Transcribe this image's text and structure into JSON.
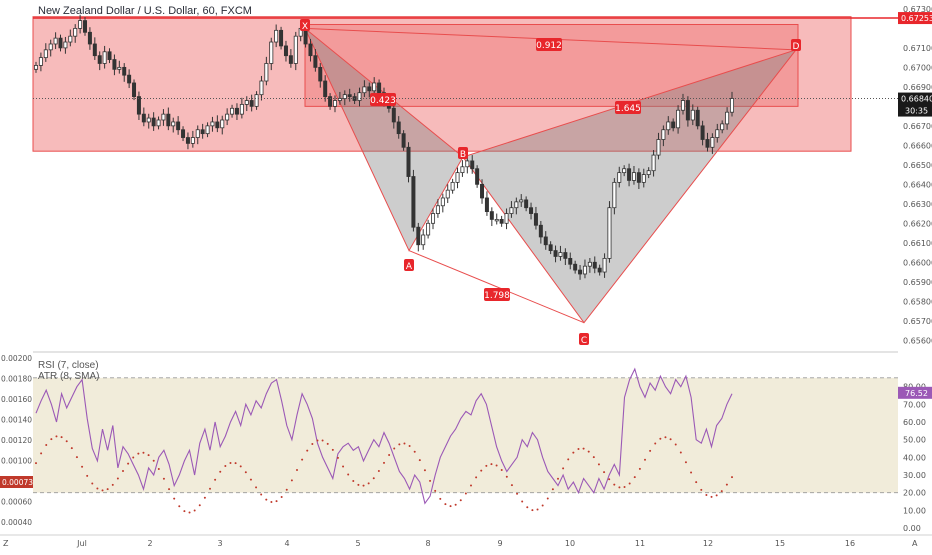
{
  "header": {
    "title": "New Zealand Dollar / U.S. Dollar, 60, FXCM"
  },
  "indicators": {
    "rsi_label": "RSI (7, close)",
    "atr_label": "ATR (8, SMA)"
  },
  "price_labels": {
    "top_line": "0.67253",
    "current": "0.66840",
    "countdown": "30:35"
  },
  "lower_labels": {
    "rsi_value": "76.52",
    "atr_value": "0.00073"
  },
  "pattern_labels": {
    "X": "X",
    "A": "A",
    "B": "B",
    "C": "C",
    "D": "D",
    "xd": "0.912",
    "xb": "0.423",
    "bd": "1.645",
    "ac": "1.798"
  },
  "corner_labels": {
    "left": "Z",
    "right": "A"
  },
  "chart_data": {
    "type": "candlestick",
    "title": "New Zealand Dollar / U.S. Dollar, 60, FXCM",
    "xlabel": "",
    "ylabel": "",
    "x_ticks": [
      "Jul",
      "2",
      "3",
      "4",
      "5",
      "8",
      "9",
      "10",
      "11",
      "12",
      "15",
      "16"
    ],
    "y_ticks": [
      "0.67300",
      "0.67100",
      "0.67000",
      "0.66900",
      "0.66800",
      "0.66700",
      "0.66600",
      "0.66500",
      "0.66400",
      "0.66300",
      "0.66200",
      "0.66100",
      "0.66000",
      "0.65900",
      "0.65800",
      "0.65700",
      "0.65600"
    ],
    "ylim": [
      0.6555,
      0.6732
    ],
    "last_price": 0.6684,
    "resistance_level": 0.67253,
    "zones": [
      {
        "x_from": "Jul",
        "x_to": "15",
        "y_from": 0.6657,
        "y_to": 0.6726
      },
      {
        "x_from": "4",
        "x_to": "15",
        "y_from": 0.668,
        "y_to": 0.6722
      }
    ],
    "pattern": [
      {
        "label": "X",
        "x": "4",
        "y": 0.672
      },
      {
        "label": "A",
        "x": "8",
        "y": 0.6606
      },
      {
        "label": "B",
        "x": "8",
        "y": 0.6654
      },
      {
        "label": "C",
        "x": "10",
        "y": 0.6569
      },
      {
        "label": "D",
        "x": "15",
        "y": 0.6709
      }
    ],
    "ratios": [
      {
        "from": "X",
        "to": "D",
        "value": 0.912
      },
      {
        "from": "X",
        "to": "B",
        "value": 0.423
      },
      {
        "from": "B",
        "to": "D",
        "value": 1.645
      },
      {
        "from": "A",
        "to": "C",
        "value": 1.798
      }
    ],
    "series": [
      {
        "name": "",
        "values": [
          0.6701,
          0.6705,
          0.6709,
          0.6712,
          0.6715,
          0.671,
          0.6713,
          0.6716,
          0.672,
          0.6724,
          0.6718,
          0.6712,
          0.6706,
          0.6702,
          0.6708,
          0.6704,
          0.6699,
          0.67,
          0.6696,
          0.6692,
          0.6685,
          0.6676,
          0.6672,
          0.6674,
          0.667,
          0.6673,
          0.6676,
          0.667,
          0.6672,
          0.6668,
          0.6664,
          0.6661,
          0.6664,
          0.6668,
          0.6666,
          0.667,
          0.6672,
          0.6669,
          0.6673,
          0.6676,
          0.6679,
          0.6676,
          0.6681,
          0.6683,
          0.668,
          0.6686,
          0.6693,
          0.6702,
          0.6713,
          0.6719,
          0.6711,
          0.6706,
          0.6702,
          0.6716,
          0.672,
          0.6712,
          0.6706,
          0.67,
          0.6693,
          0.6685,
          0.668,
          0.6683,
          0.6684,
          0.6686,
          0.6685,
          0.6683,
          0.6687,
          0.669,
          0.6688,
          0.6692,
          0.6687,
          0.6683,
          0.6679,
          0.6672,
          0.6666,
          0.6659,
          0.6644,
          0.6618,
          0.6609,
          0.6614,
          0.662,
          0.6625,
          0.6629,
          0.6633,
          0.6637,
          0.6641,
          0.6646,
          0.6649,
          0.6652,
          0.6648,
          0.664,
          0.6633,
          0.6626,
          0.6622,
          0.6622,
          0.662,
          0.6625,
          0.6628,
          0.6631,
          0.6632,
          0.6628,
          0.6625,
          0.6619,
          0.6613,
          0.6609,
          0.6606,
          0.6603,
          0.6605,
          0.6602,
          0.6599,
          0.6596,
          0.6594,
          0.6598,
          0.66,
          0.6597,
          0.6595,
          0.6602,
          0.6628,
          0.6641,
          0.6646,
          0.6648,
          0.6642,
          0.6646,
          0.6641,
          0.6645,
          0.6647,
          0.6655,
          0.6663,
          0.6668,
          0.6672,
          0.6669,
          0.6678,
          0.6683,
          0.6673,
          0.6678,
          0.667,
          0.6663,
          0.6659,
          0.6664,
          0.6668,
          0.6671,
          0.6677,
          0.6684
        ]
      },
      {
        "name": "RSI (7, close)",
        "values": [
          65,
          72,
          78,
          70,
          60,
          76,
          68,
          74,
          80,
          84,
          62,
          45,
          38,
          56,
          44,
          58,
          34,
          46,
          42,
          36,
          30,
          22,
          34,
          30,
          40,
          44,
          36,
          24,
          30,
          38,
          44,
          30,
          48,
          56,
          44,
          60,
          46,
          52,
          60,
          66,
          58,
          70,
          64,
          72,
          68,
          76,
          82,
          84,
          72,
          58,
          50,
          64,
          76,
          70,
          62,
          48,
          40,
          34,
          28,
          42,
          46,
          48,
          44,
          46,
          38,
          44,
          50,
          46,
          54,
          48,
          40,
          32,
          28,
          22,
          30,
          26,
          14,
          18,
          30,
          40,
          46,
          52,
          56,
          62,
          66,
          64,
          72,
          76,
          70,
          58,
          46,
          38,
          32,
          36,
          40,
          50,
          46,
          54,
          50,
          40,
          32,
          28,
          24,
          30,
          22,
          26,
          20,
          28,
          24,
          20,
          28,
          22,
          30,
          36,
          30,
          74,
          84,
          90,
          80,
          74,
          82,
          78,
          86,
          80,
          76,
          84,
          80,
          86,
          74,
          50,
          48,
          56,
          46,
          58,
          62,
          70,
          76
        ]
      },
      {
        "name": "ATR (8, SMA)",
        "values": []
      }
    ],
    "lower_panel": {
      "rsi_ticks": [
        "80.00",
        "70.00",
        "60.00",
        "50.00",
        "40.00",
        "30.00",
        "20.00",
        "10.00",
        "0.00"
      ],
      "atr_ticks": [
        "0.00200",
        "0.00180",
        "0.00160",
        "0.00140",
        "0.00120",
        "0.00100",
        "0.00080",
        "0.00060",
        "0.00040"
      ],
      "rsi_band": [
        20,
        85
      ],
      "rsi_last": 76.52,
      "atr_last": 0.00073
    }
  }
}
